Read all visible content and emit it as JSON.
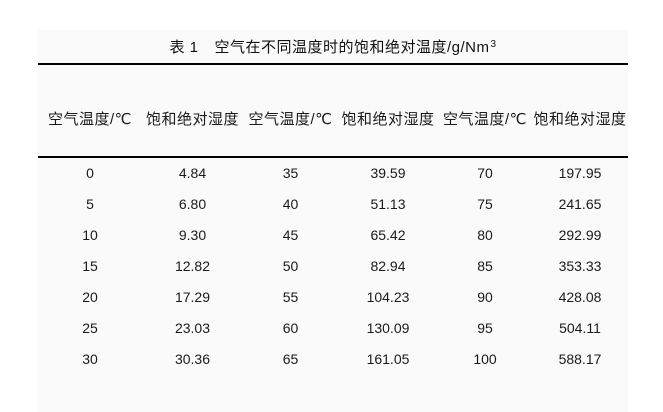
{
  "page": {
    "background_color": "#ffffff"
  },
  "table": {
    "background_color": "#fafafa",
    "rule_color": "#000000",
    "text_color": "#1a1a1a",
    "title": {
      "prefix": "表 1",
      "main": "空气在不同温度时的饱和绝对温度/g/Nm",
      "superscript": "3"
    },
    "columns": [
      "空气温度/℃",
      "饱和绝对湿度",
      "空气温度/℃",
      "饱和绝对湿度",
      "空气温度/℃",
      "饱和绝对湿度"
    ],
    "rows": [
      [
        "0",
        "4.84",
        "35",
        "39.59",
        "70",
        "197.95"
      ],
      [
        "5",
        "6.80",
        "40",
        "51.13",
        "75",
        "241.65"
      ],
      [
        "10",
        "9.30",
        "45",
        "65.42",
        "80",
        "292.99"
      ],
      [
        "15",
        "12.82",
        "50",
        "82.94",
        "85",
        "353.33"
      ],
      [
        "20",
        "17.29",
        "55",
        "104.23",
        "90",
        "428.08"
      ],
      [
        "25",
        "23.03",
        "60",
        "130.09",
        "95",
        "504.11"
      ],
      [
        "30",
        "30.36",
        "65",
        "161.05",
        "100",
        "588.17"
      ]
    ]
  }
}
